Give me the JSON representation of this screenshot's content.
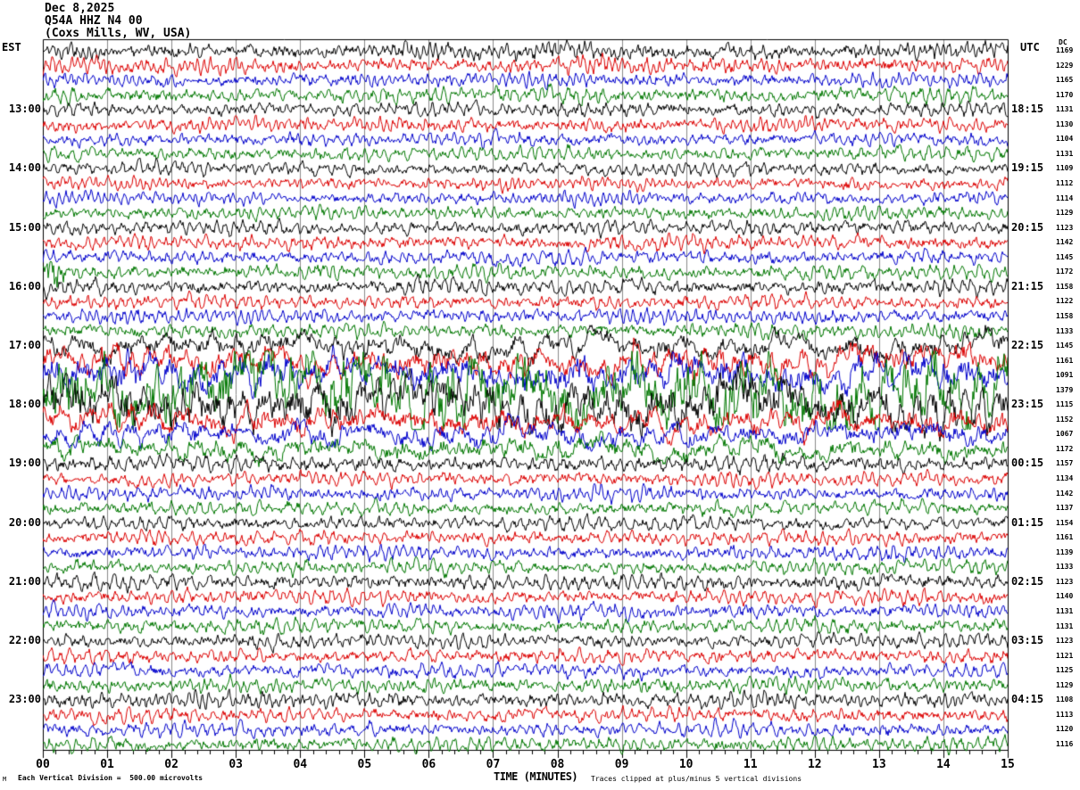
{
  "header": {
    "date": "Dec 8,2025",
    "station": "Q54A HHZ N4 00",
    "location": "(Coxs Mills, WV, USA)"
  },
  "left_axis": {
    "title": "EST",
    "hour_labels": [
      "13:00",
      "14:00",
      "15:00",
      "16:00",
      "17:00",
      "18:00",
      "19:00",
      "20:00",
      "21:00",
      "22:00",
      "23:00"
    ]
  },
  "right_axis": {
    "title": "UTC",
    "dc_label": "DC",
    "hour_labels": [
      "18:15",
      "19:15",
      "20:15",
      "21:15",
      "22:15",
      "23:15",
      "00:15",
      "01:15",
      "02:15",
      "03:15",
      "04:15"
    ],
    "dc_values": [
      1169,
      1229,
      1165,
      1170,
      1131,
      1130,
      1104,
      1131,
      1109,
      1112,
      1114,
      1129,
      1123,
      1142,
      1145,
      1172,
      1158,
      1122,
      1158,
      1133,
      1145,
      1161,
      1091,
      1379,
      1115,
      1152,
      1067,
      1172,
      1157,
      1134,
      1142,
      1137,
      1154,
      1161,
      1139,
      1133,
      1123,
      1140,
      1131,
      1131,
      1123,
      1121,
      1125,
      1129,
      1108,
      1113,
      1120,
      1116
    ]
  },
  "x_axis": {
    "title": "TIME (MINUTES)",
    "minute_labels": [
      "00",
      "01",
      "02",
      "03",
      "04",
      "05",
      "06",
      "07",
      "08",
      "09",
      "10",
      "11",
      "12",
      "13",
      "14",
      "15"
    ]
  },
  "footer": {
    "scale_note": "Each Vertical Division =  500.00 microvolts",
    "clip_note": "Traces clipped at plus/minus 5 vertical divisions",
    "corner_mark": "M"
  },
  "colors": {
    "trace_cycle": [
      "#000000",
      "#dd0000",
      "#0000cc",
      "#007700"
    ],
    "grid": "#8a8a8a",
    "axis": "#000000",
    "background": "#ffffff"
  },
  "chart_data": {
    "type": "line",
    "subtype": "helicorder-seismogram",
    "num_rows": 48,
    "lines_per_hour": 4,
    "minutes_per_line": 15,
    "x_range_minutes": [
      0,
      15
    ],
    "grid": "vertical gridline every minute",
    "row_color_cycle": [
      "black",
      "red",
      "blue",
      "green"
    ],
    "relative_amplitudes": [
      1.15,
      1.1,
      1.0,
      1.1,
      1.0,
      1.0,
      0.95,
      1.0,
      0.95,
      0.9,
      0.9,
      0.95,
      1.0,
      1.0,
      1.0,
      1.05,
      1.1,
      1.0,
      1.0,
      1.0,
      1.5,
      1.8,
      2.2,
      4.5,
      3.0,
      1.7,
      1.5,
      1.4,
      1.15,
      1.0,
      1.0,
      1.0,
      1.0,
      1.0,
      1.0,
      1.0,
      1.1,
      1.0,
      1.0,
      1.0,
      1.0,
      1.0,
      1.0,
      1.0,
      1.1,
      1.0,
      1.0,
      1.0
    ],
    "events": [
      {
        "row": 15,
        "start_minute": 0.04,
        "end_minute": 0.6,
        "gain": 3.6,
        "note": "compact high-amplitude burst at start of 15:45 EST green trace"
      },
      {
        "rows": [
          20,
          21,
          22,
          23,
          24,
          25,
          26,
          27
        ],
        "note": "large-amplitude event spanning ~17:00-19:00 EST, peak on green 17:45 trace (DC 1379), traces overlap and clip"
      }
    ]
  }
}
